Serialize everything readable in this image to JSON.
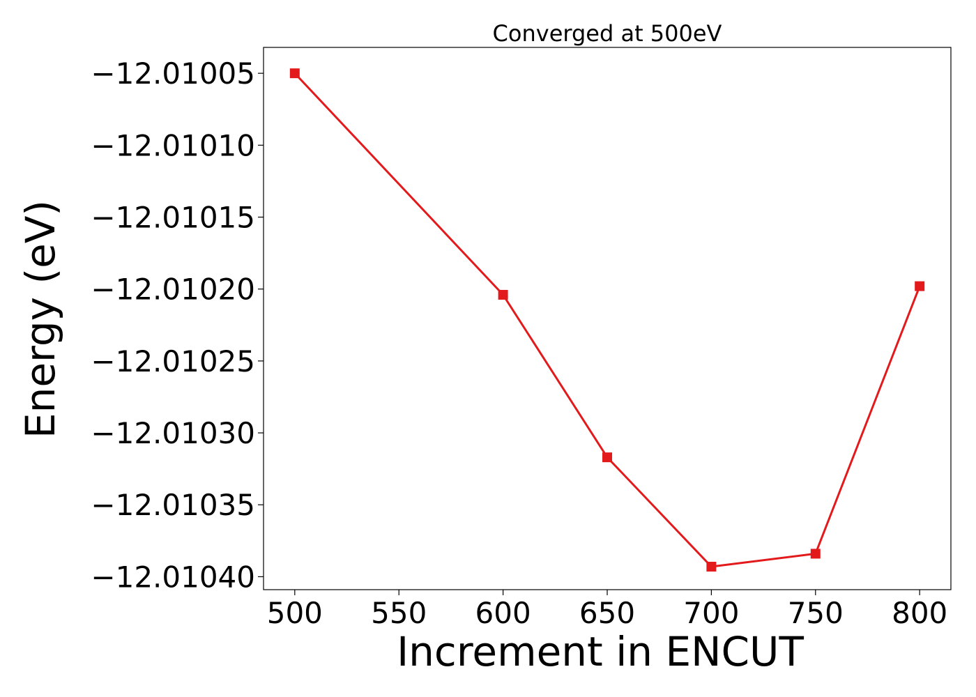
{
  "chart_data": {
    "type": "line",
    "title": "Converged at 500eV",
    "xlabel": "Increment in ENCUT",
    "ylabel": "Energy (eV)",
    "x": [
      500,
      600,
      650,
      700,
      750,
      800
    ],
    "series": [
      {
        "values": [
          -12.01005,
          -12.010204,
          -12.010317,
          -12.010393,
          -12.010384,
          -12.010198
        ],
        "color": "#e31a1c",
        "marker": "square"
      }
    ],
    "xticks": [
      500,
      550,
      600,
      650,
      700,
      750,
      800
    ],
    "xtick_labels": [
      "500",
      "550",
      "600",
      "650",
      "700",
      "750",
      "800"
    ],
    "yticks": [
      -12.01005,
      -12.0101,
      -12.01015,
      -12.0102,
      -12.01025,
      -12.0103,
      -12.01035,
      -12.0104
    ],
    "ytick_labels": [
      "−12.01005",
      "−12.01010",
      "−12.01015",
      "−12.01020",
      "−12.01025",
      "−12.01030",
      "−12.01035",
      "−12.01040"
    ],
    "xlim": [
      485,
      815
    ],
    "ylim": [
      -12.010409,
      -12.010032
    ],
    "grid": false,
    "legend": "none"
  }
}
